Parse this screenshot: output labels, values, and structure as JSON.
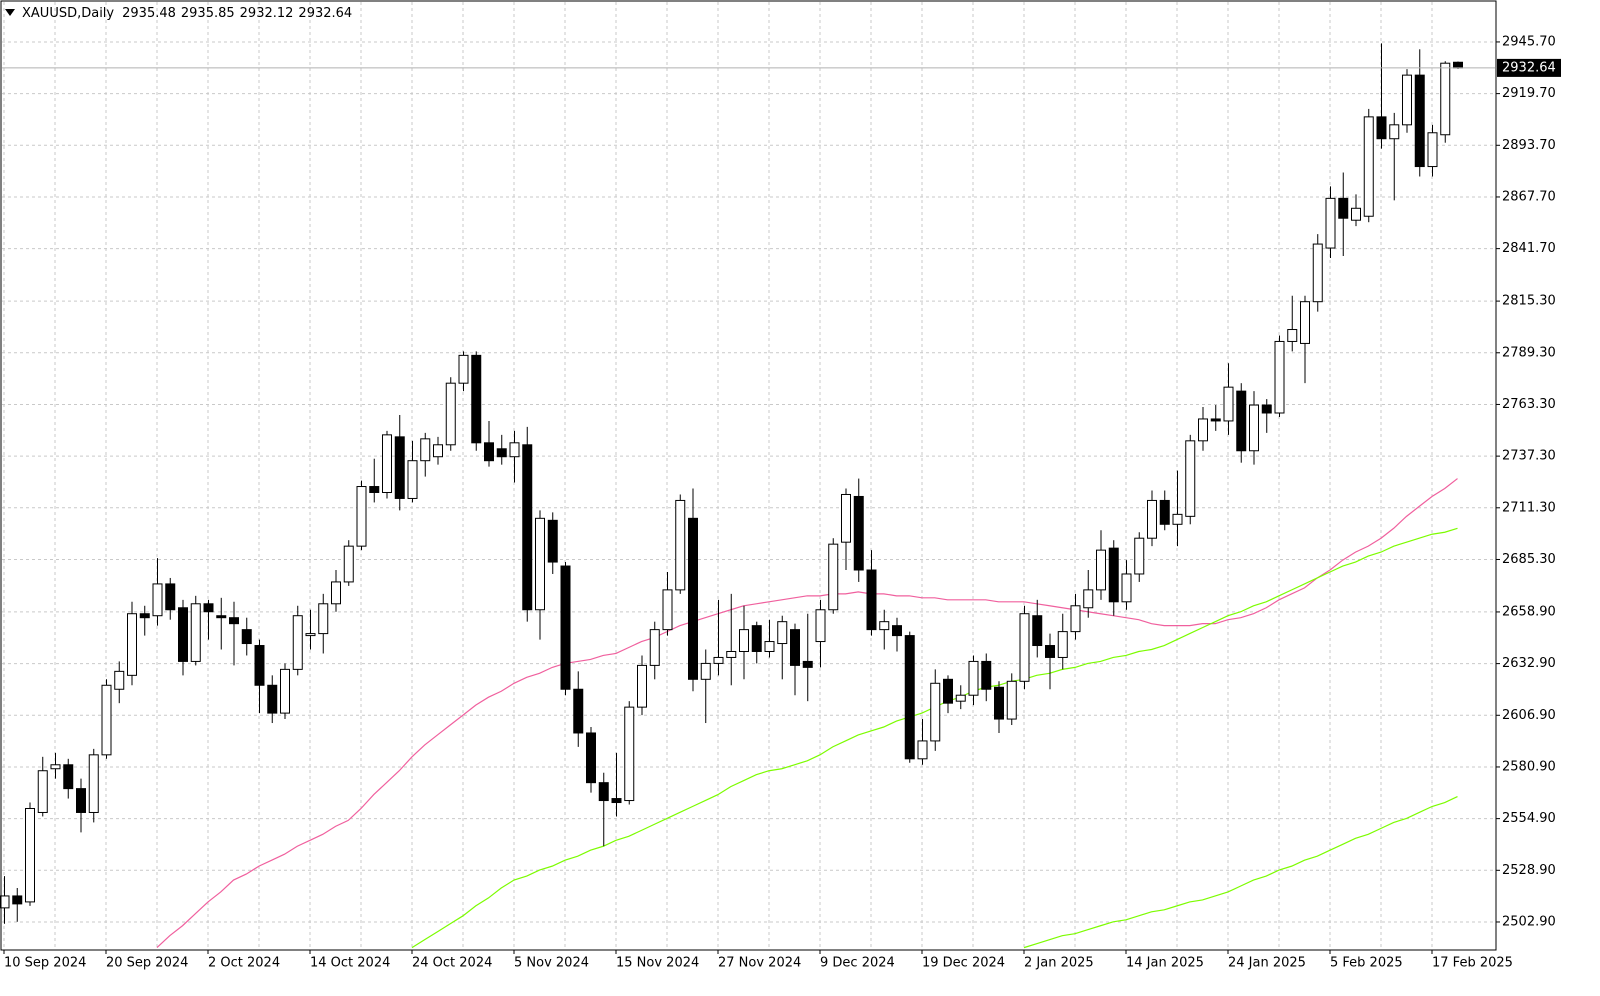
{
  "chart_data": {
    "type": "candlestick",
    "title": "XAUUSD,Daily",
    "categories": [
      "10 Sep 2024",
      null,
      null,
      null,
      null,
      null,
      null,
      null,
      "20 Sep 2024",
      null,
      null,
      null,
      null,
      null,
      null,
      null,
      "2 Oct 2024",
      null,
      null,
      null,
      null,
      null,
      null,
      null,
      "14 Oct 2024",
      null,
      null,
      null,
      null,
      null,
      null,
      null,
      "24 Oct 2024",
      null,
      null,
      null,
      null,
      null,
      null,
      null,
      "5 Nov 2024",
      null,
      null,
      null,
      null,
      null,
      null,
      null,
      "15 Nov 2024",
      null,
      null,
      null,
      null,
      null,
      null,
      null,
      "27 Nov 2024",
      null,
      null,
      null,
      null,
      null,
      null,
      null,
      "9 Dec 2024",
      null,
      null,
      null,
      null,
      null,
      null,
      null,
      "19 Dec 2024",
      null,
      null,
      null,
      null,
      null,
      null,
      null,
      "2 Jan 2025",
      null,
      null,
      null,
      null,
      null,
      null,
      null,
      "14 Jan 2025",
      null,
      null,
      null,
      null,
      null,
      null,
      null,
      "24 Jan 2025",
      null,
      null,
      null,
      null,
      null,
      null,
      null,
      "5 Feb 2025",
      null,
      null,
      null,
      null,
      null,
      null,
      null,
      "17 Feb 2025",
      null,
      null
    ],
    "open": [
      2510,
      2516,
      2513,
      2558,
      2580,
      2582,
      2570,
      2558,
      2587,
      2620,
      2627,
      2658,
      2657,
      2673,
      2661,
      2634,
      2663,
      2657,
      2656,
      2650,
      2642,
      2622,
      2608,
      2630,
      2647,
      2648,
      2663,
      2674,
      2692,
      2722,
      2719,
      2747,
      2716,
      2735,
      2737,
      2743,
      2774,
      2788,
      2744,
      2741,
      2737,
      2743,
      2660,
      2705,
      2682,
      2620,
      2598,
      2573,
      2565,
      2564,
      2611,
      2632,
      2650,
      2670,
      2706,
      2625,
      2633,
      2636,
      2639,
      2652,
      2639,
      2643,
      2650,
      2634,
      2644,
      2660,
      2694,
      2717,
      2680,
      2650,
      2652,
      2647,
      2585,
      2594,
      2625,
      2614,
      2617,
      2634,
      2621,
      2605,
      2624,
      2657,
      2642,
      2636,
      2649,
      2661,
      2670,
      2691,
      2664,
      2678,
      2696,
      2715,
      2703,
      2707,
      2745,
      2756,
      2755,
      2770,
      2740,
      2763,
      2759,
      2795,
      2794,
      2815,
      2842,
      2867,
      2856,
      2858,
      2908,
      2897,
      2904,
      2929,
      2883,
      2899,
      2935.48
    ],
    "high": [
      2526,
      2520,
      2563,
      2586,
      2588,
      2585,
      2575,
      2590,
      2625,
      2634,
      2664,
      2662,
      2686,
      2676,
      2665,
      2667,
      2665,
      2666,
      2664,
      2656,
      2645,
      2627,
      2633,
      2662,
      2660,
      2668,
      2680,
      2695,
      2725,
      2736,
      2750,
      2758,
      2745,
      2749,
      2747,
      2777,
      2790,
      2790,
      2755,
      2748,
      2750,
      2752,
      2710,
      2709,
      2684,
      2629,
      2601,
      2578,
      2588,
      2614,
      2637,
      2654,
      2679,
      2718,
      2721,
      2640,
      2665,
      2668,
      2662,
      2654,
      2655,
      2657,
      2653,
      2658,
      2665,
      2696,
      2721,
      2726,
      2690,
      2660,
      2656,
      2649,
      2605,
      2630,
      2627,
      2622,
      2637,
      2638,
      2624,
      2628,
      2662,
      2665,
      2648,
      2658,
      2668,
      2680,
      2700,
      2695,
      2685,
      2699,
      2720,
      2720,
      2730,
      2748,
      2762,
      2763,
      2784,
      2774,
      2770,
      2766,
      2798,
      2818,
      2818,
      2849,
      2873,
      2880,
      2869,
      2912,
      2945,
      2910,
      2932,
      2942,
      2904,
      2936,
      2935.85
    ],
    "low": [
      2502,
      2503,
      2511,
      2556,
      2575,
      2565,
      2548,
      2553,
      2585,
      2613,
      2622,
      2647,
      2652,
      2655,
      2627,
      2632,
      2645,
      2640,
      2632,
      2637,
      2608,
      2603,
      2605,
      2627,
      2640,
      2638,
      2659,
      2672,
      2690,
      2714,
      2716,
      2710,
      2714,
      2727,
      2733,
      2740,
      2770,
      2740,
      2732,
      2733,
      2724,
      2654,
      2645,
      2678,
      2617,
      2591,
      2568,
      2541,
      2556,
      2562,
      2607,
      2625,
      2647,
      2668,
      2619,
      2603,
      2627,
      2622,
      2625,
      2633,
      2636,
      2625,
      2617,
      2614,
      2631,
      2658,
      2680,
      2674,
      2647,
      2640,
      2639,
      2583,
      2582,
      2589,
      2608,
      2610,
      2612,
      2614,
      2598,
      2602,
      2620,
      2636,
      2620,
      2630,
      2645,
      2656,
      2665,
      2657,
      2660,
      2674,
      2692,
      2700,
      2692,
      2703,
      2740,
      2750,
      2748,
      2734,
      2733,
      2749,
      2757,
      2790,
      2774,
      2810,
      2837,
      2838,
      2853,
      2855,
      2892,
      2866,
      2900,
      2878,
      2878,
      2895,
      2932.12
    ],
    "close": [
      2516,
      2512,
      2560,
      2579,
      2582,
      2570,
      2558,
      2587,
      2622,
      2629,
      2658,
      2656,
      2673,
      2660,
      2634,
      2663,
      2659,
      2656,
      2653,
      2643,
      2622,
      2608,
      2630,
      2657,
      2648,
      2663,
      2674,
      2692,
      2722,
      2719,
      2748,
      2716,
      2735,
      2746,
      2743,
      2774,
      2788,
      2744,
      2735,
      2737,
      2744,
      2660,
      2706,
      2684,
      2620,
      2598,
      2573,
      2564,
      2563,
      2611,
      2632,
      2650,
      2670,
      2715,
      2625,
      2633,
      2636,
      2639,
      2650,
      2639,
      2644,
      2654,
      2632,
      2631,
      2660,
      2693,
      2718,
      2680,
      2650,
      2654,
      2647,
      2585,
      2594,
      2623,
      2613,
      2617,
      2634,
      2620,
      2605,
      2624,
      2658,
      2642,
      2636,
      2649,
      2662,
      2670,
      2690,
      2664,
      2678,
      2696,
      2715,
      2703,
      2708,
      2745,
      2756,
      2755,
      2772,
      2740,
      2763,
      2759,
      2795,
      2801,
      2815,
      2844,
      2867,
      2857,
      2862,
      2908,
      2897,
      2904,
      2929,
      2883,
      2900,
      2935,
      2932.64
    ],
    "bull_color": "#ffffff",
    "bear_color": "#000000",
    "series": [
      {
        "color": "#f0609e",
        "values": [
          null,
          null,
          null,
          null,
          null,
          null,
          null,
          null,
          null,
          null,
          null,
          null,
          2490,
          2496,
          2501,
          2507,
          2513,
          2518,
          2524,
          2527,
          2531,
          2534,
          2537,
          2541,
          2544,
          2547,
          2551,
          2554,
          2560,
          2567,
          2573,
          2579,
          2586,
          2592,
          2597,
          2602,
          2607,
          2612,
          2616,
          2619,
          2623,
          2626,
          2628,
          2631,
          2633,
          2634,
          2635,
          2637,
          2638,
          2641,
          2644,
          2646,
          2649,
          2652,
          2654,
          2656,
          2658,
          2660,
          2662,
          2663,
          2664,
          2665,
          2666,
          2667,
          2667,
          2668,
          2668,
          2669,
          2668,
          2668,
          2667,
          2667,
          2666,
          2666,
          2665,
          2665,
          2665,
          2665,
          2664,
          2664,
          2664,
          2663,
          2662,
          2661,
          2660,
          2659,
          2658,
          2657,
          2656,
          2655,
          2653,
          2652,
          2652,
          2652,
          2653,
          2653,
          2655,
          2656,
          2658,
          2661,
          2665,
          2668,
          2671,
          2676,
          2680,
          2685,
          2689,
          2692,
          2696,
          2701,
          2707,
          2712,
          2717,
          2721,
          2726
        ]
      },
      {
        "color": "#7cfc00",
        "values": [
          null,
          null,
          null,
          null,
          null,
          null,
          null,
          null,
          null,
          null,
          null,
          null,
          null,
          null,
          null,
          null,
          null,
          null,
          null,
          null,
          null,
          null,
          null,
          null,
          null,
          null,
          null,
          null,
          null,
          null,
          null,
          null,
          2490,
          2494,
          2498,
          2502,
          2506,
          2511,
          2515,
          2520,
          2524,
          2526,
          2529,
          2531,
          2534,
          2536,
          2539,
          2541,
          2544,
          2546,
          2549,
          2552,
          2555,
          2558,
          2561,
          2564,
          2567,
          2571,
          2574,
          2577,
          2579,
          2580,
          2582,
          2584,
          2587,
          2591,
          2594,
          2597,
          2599,
          2601,
          2604,
          2606,
          2608,
          2611,
          2614,
          2616,
          2619,
          2621,
          2622,
          2624,
          2625,
          2627,
          2628,
          2630,
          2631,
          2633,
          2634,
          2636,
          2637,
          2639,
          2640,
          2642,
          2645,
          2648,
          2651,
          2654,
          2657,
          2659,
          2662,
          2664,
          2667,
          2670,
          2673,
          2676,
          2679,
          2682,
          2684,
          2687,
          2689,
          2692,
          2694,
          2696,
          2698,
          2699,
          2701
        ]
      },
      {
        "color": "#7cfc00",
        "values": [
          null,
          null,
          null,
          null,
          null,
          null,
          null,
          null,
          null,
          null,
          null,
          null,
          null,
          null,
          null,
          null,
          null,
          null,
          null,
          null,
          null,
          null,
          null,
          null,
          null,
          null,
          null,
          null,
          null,
          null,
          null,
          null,
          null,
          null,
          null,
          null,
          null,
          null,
          null,
          null,
          null,
          null,
          null,
          null,
          null,
          null,
          null,
          null,
          null,
          null,
          null,
          null,
          null,
          null,
          null,
          null,
          null,
          null,
          null,
          null,
          null,
          null,
          null,
          null,
          null,
          null,
          null,
          null,
          null,
          null,
          null,
          null,
          null,
          null,
          null,
          null,
          null,
          null,
          null,
          null,
          2490,
          2492,
          2494,
          2496,
          2497,
          2499,
          2501,
          2503,
          2504,
          2506,
          2508,
          2509,
          2511,
          2513,
          2514,
          2516,
          2518,
          2521,
          2524,
          2526,
          2529,
          2531,
          2534,
          2536,
          2539,
          2542,
          2545,
          2547,
          2550,
          2553,
          2555,
          2558,
          2561,
          2563,
          2566
        ]
      }
    ],
    "ylim": [
      2488.8,
      2966.3
    ],
    "yticks": [
      {
        "value": 2502.9,
        "label": "2502.90"
      },
      {
        "value": 2528.9,
        "label": "2528.90"
      },
      {
        "value": 2554.9,
        "label": "2554.90"
      },
      {
        "value": 2580.9,
        "label": "2580.90"
      },
      {
        "value": 2606.9,
        "label": "2606.90"
      },
      {
        "value": 2632.9,
        "label": "2632.90"
      },
      {
        "value": 2658.9,
        "label": "2658.90"
      },
      {
        "value": 2685.3,
        "label": "2685.30"
      },
      {
        "value": 2711.3,
        "label": "2711.30"
      },
      {
        "value": 2737.3,
        "label": "2737.30"
      },
      {
        "value": 2763.3,
        "label": "2763.30"
      },
      {
        "value": 2789.3,
        "label": "2789.30"
      },
      {
        "value": 2815.3,
        "label": "2815.30"
      },
      {
        "value": 2841.7,
        "label": "2841.70"
      },
      {
        "value": 2867.7,
        "label": "2867.70"
      },
      {
        "value": 2893.7,
        "label": "2893.70"
      },
      {
        "value": 2919.7,
        "label": "2919.70"
      },
      {
        "value": 2945.7,
        "label": "2945.70"
      }
    ],
    "grid": true
  }
}
